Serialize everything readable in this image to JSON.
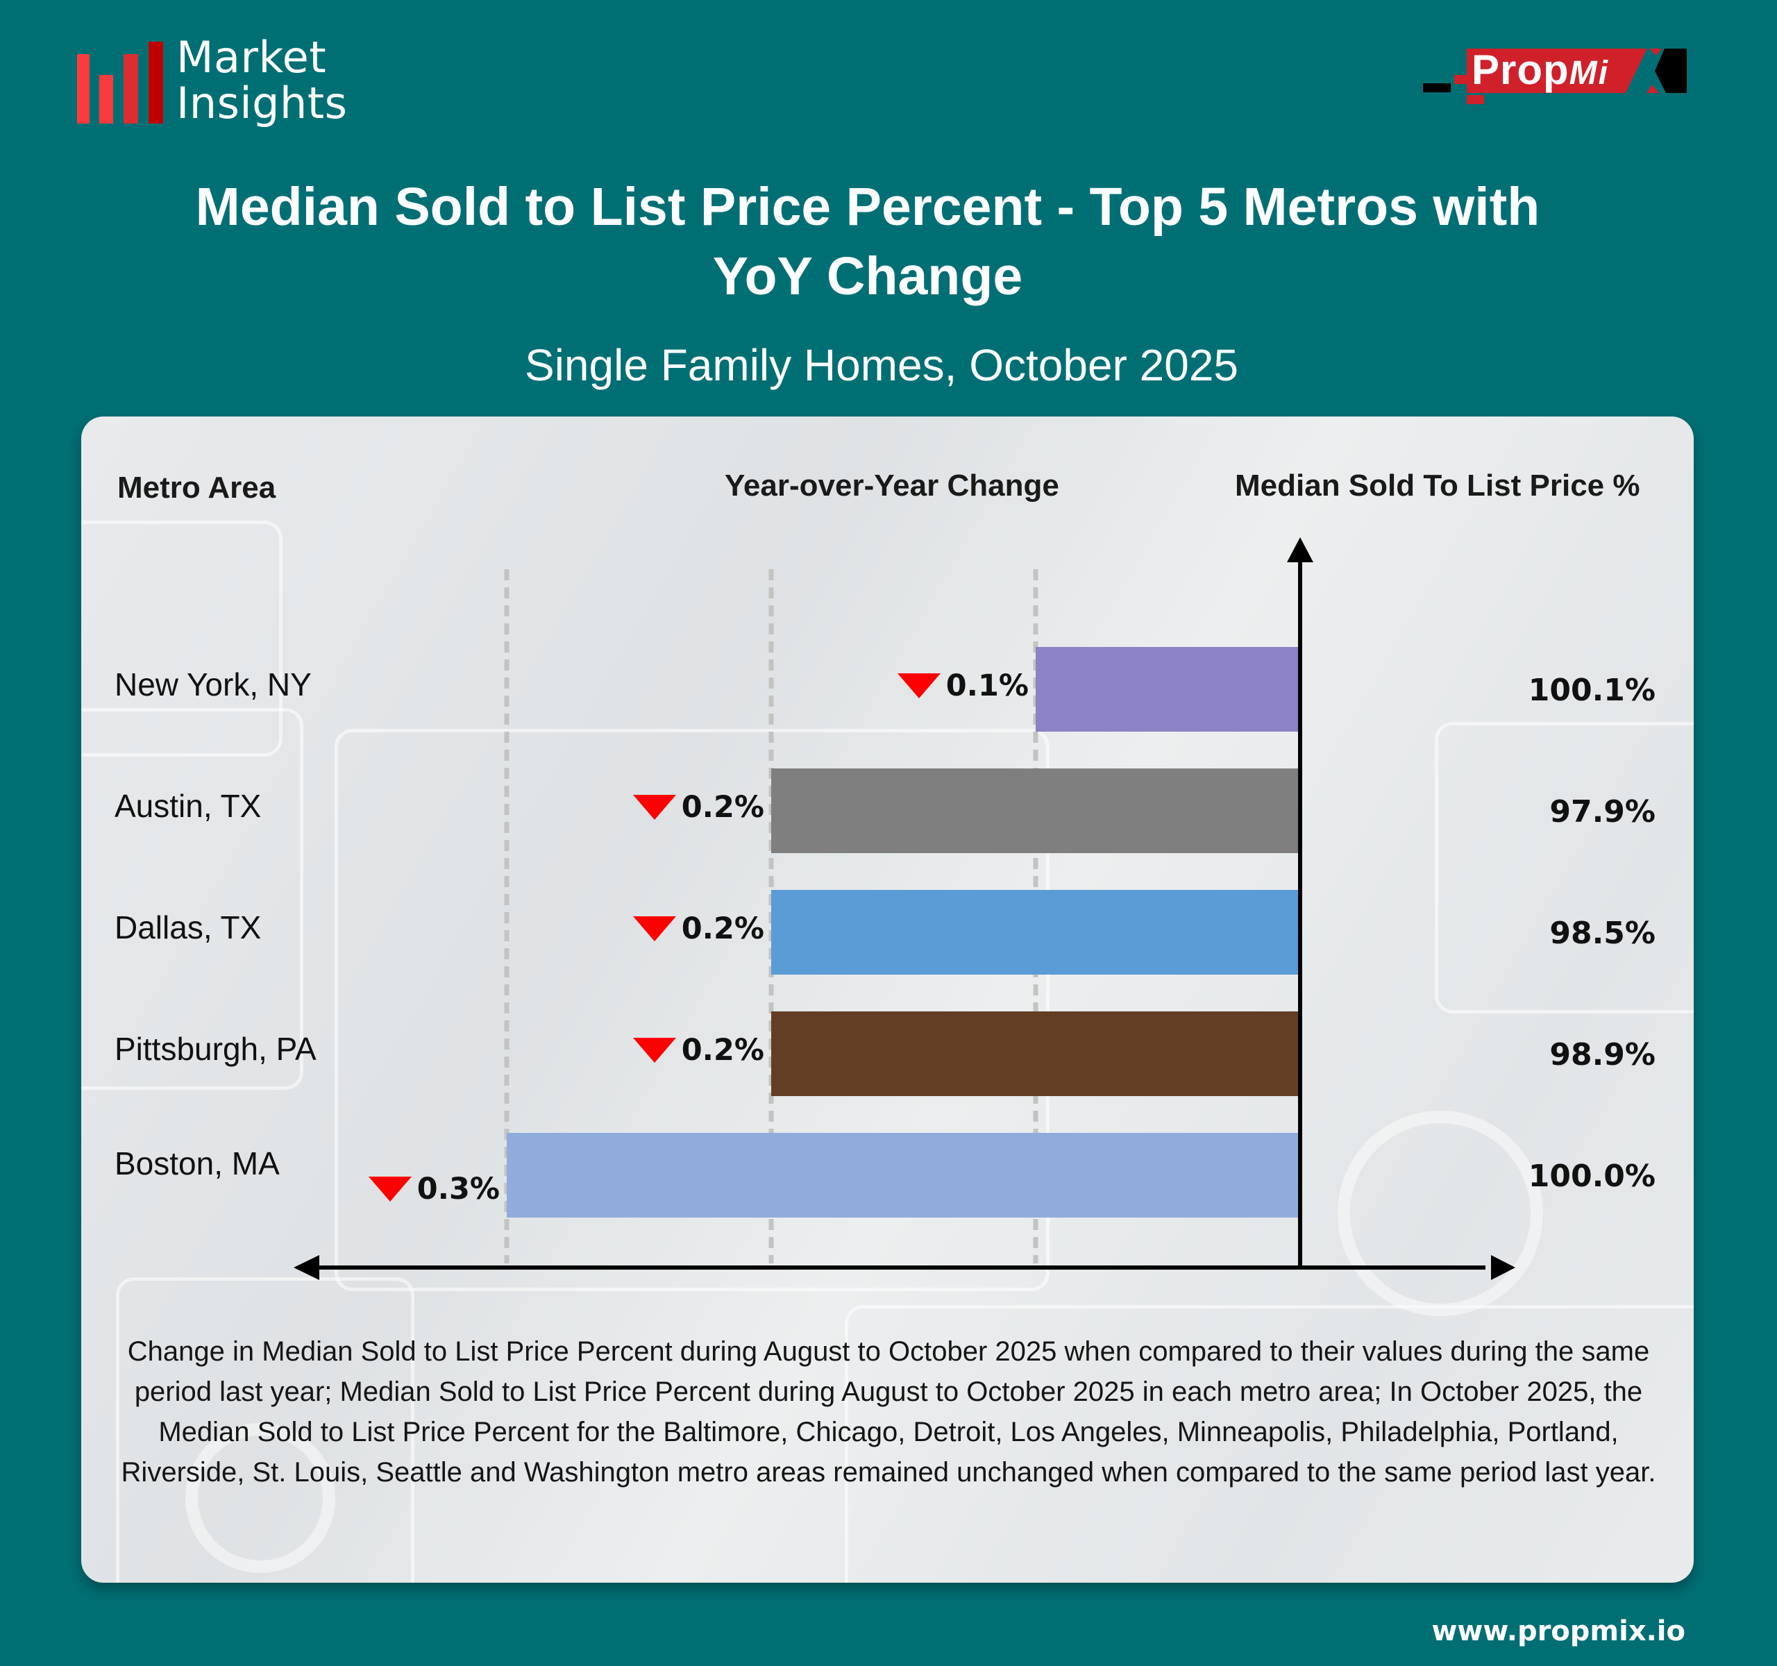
{
  "brand": {
    "logo_line1": "Market",
    "logo_line2": "Insights",
    "logo_bar_colors": [
      "#fd3b3f",
      "#f83a3e",
      "#dc2d30",
      "#c00000"
    ],
    "partner_logo_main": "Prop",
    "partner_logo_italic": "Mi",
    "partner_logo_x": "X",
    "partner_red": "#d0202a",
    "website": "www.propmix.io"
  },
  "header": {
    "title_line1": "Median Sold to List Price Percent - Top 5 Metros with",
    "title_line2": "YoY Change",
    "subtitle": "Single Family Homes, October 2025"
  },
  "columns": {
    "metro": "Metro Area",
    "yoy": "Year-over-Year Change",
    "value": "Median Sold To List Price %"
  },
  "chart_data": {
    "type": "bar",
    "orientation": "horizontal",
    "title": "Median Sold to List Price Percent - Top 5 Metros with YoY Change",
    "subtitle": "Single Family Homes, October 2025",
    "categories": [
      "New York, NY",
      "Austin, TX",
      "Dallas, TX",
      "Pittsburgh, PA",
      "Boston, MA"
    ],
    "series": [
      {
        "name": "Year-over-Year Change (%)",
        "values": [
          -0.1,
          -0.2,
          -0.2,
          -0.2,
          -0.3
        ],
        "labels": [
          "0.1%",
          "0.2%",
          "0.2%",
          "0.2%",
          "0.3%"
        ],
        "direction": [
          "down",
          "down",
          "down",
          "down",
          "down"
        ],
        "colors": [
          "#8b83c5",
          "#7f7f7f",
          "#5b9bd6",
          "#633e25",
          "#8facdc"
        ]
      },
      {
        "name": "Median Sold To List Price %",
        "values": [
          100.1,
          97.9,
          98.5,
          98.9,
          100.0
        ],
        "labels": [
          "100.1%",
          "97.9%",
          "98.5%",
          "98.9%",
          "100.0%"
        ]
      }
    ],
    "xlabel": "Year-over-Year Change",
    "ylabel": "Median Sold To List Price %",
    "xlim": [
      -0.35,
      0.1
    ],
    "gridlines_at": [
      -0.3,
      -0.2,
      -0.1
    ],
    "grid": "dashed vertical",
    "decline_marker_color": "#ff0000",
    "legend": "none"
  },
  "footnote": "Change in Median Sold to List Price Percent during August to October 2025 when compared to their values during the same period last year; Median Sold to List Price Percent during August to October 2025 in each metro area; In October 2025, the Median Sold to List Price Percent for the  Baltimore, Chicago, Detroit, Los Angeles, Minneapolis, Philadelphia, Portland, Riverside, St. Louis, Seattle and Washington metro areas remained unchanged when compared to the same period last year.",
  "colors": {
    "background": "#006f74",
    "card": "#e5e7e9"
  }
}
